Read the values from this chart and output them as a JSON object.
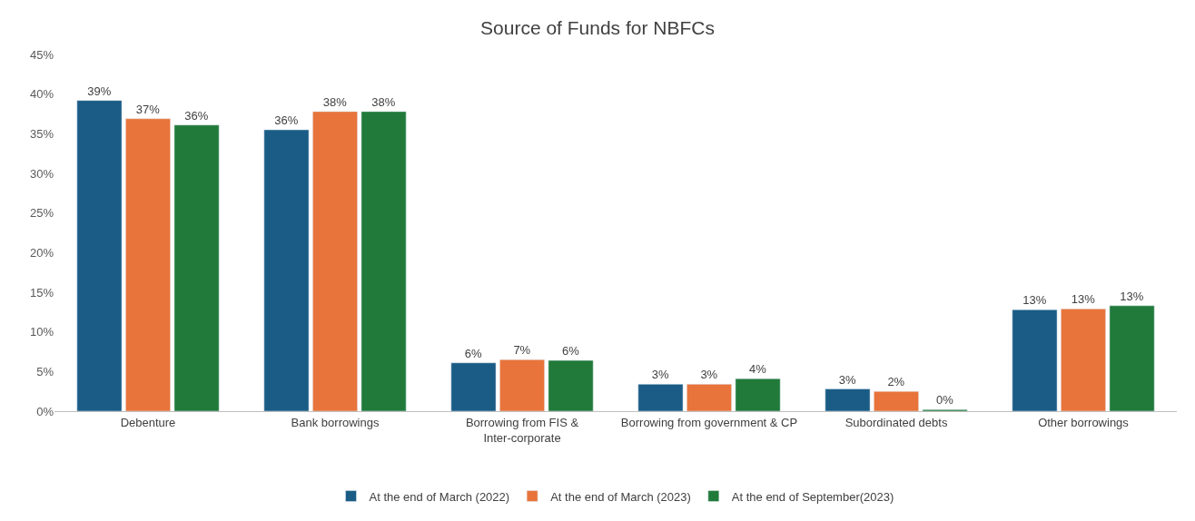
{
  "chart_data": {
    "type": "bar",
    "title": "Source of Funds for NBFCs",
    "categories": [
      "Debenture",
      "Bank borrowings",
      "Borrowing from FIS & Inter-corporate",
      "Borrowing from government & CP",
      "Subordinated debts",
      "Other borrowings"
    ],
    "series": [
      {
        "name": "At the end of March (2022)",
        "color": "#1a5c85",
        "values": [
          39.2,
          35.5,
          6.1,
          3.4,
          2.8,
          12.8
        ],
        "value_labels": [
          "39%",
          "36%",
          "6%",
          "3%",
          "3%",
          "13%"
        ]
      },
      {
        "name": "At the end of March (2023)",
        "color": "#e8743b",
        "values": [
          36.9,
          37.8,
          6.5,
          3.4,
          2.5,
          12.9
        ],
        "value_labels": [
          "37%",
          "38%",
          "7%",
          "3%",
          "2%",
          "13%"
        ]
      },
      {
        "name": "At the end of September(2023)",
        "color": "#217a3a",
        "values": [
          36.1,
          37.8,
          6.4,
          4.1,
          0.2,
          13.3
        ],
        "value_labels": [
          "36%",
          "38%",
          "6%",
          "4%",
          "0%",
          "13%"
        ]
      }
    ],
    "ylim": [
      0,
      45
    ],
    "yticks": [
      {
        "value": 0,
        "label": "0%"
      },
      {
        "value": 5,
        "label": "5%"
      },
      {
        "value": 10,
        "label": "10%"
      },
      {
        "value": 15,
        "label": "15%"
      },
      {
        "value": 20,
        "label": "20%"
      },
      {
        "value": 25,
        "label": "25%"
      },
      {
        "value": 30,
        "label": "30%"
      },
      {
        "value": 35,
        "label": "35%"
      },
      {
        "value": 40,
        "label": "40%"
      },
      {
        "value": 45,
        "label": "45%"
      }
    ],
    "grid": false,
    "legend": "bottom"
  }
}
